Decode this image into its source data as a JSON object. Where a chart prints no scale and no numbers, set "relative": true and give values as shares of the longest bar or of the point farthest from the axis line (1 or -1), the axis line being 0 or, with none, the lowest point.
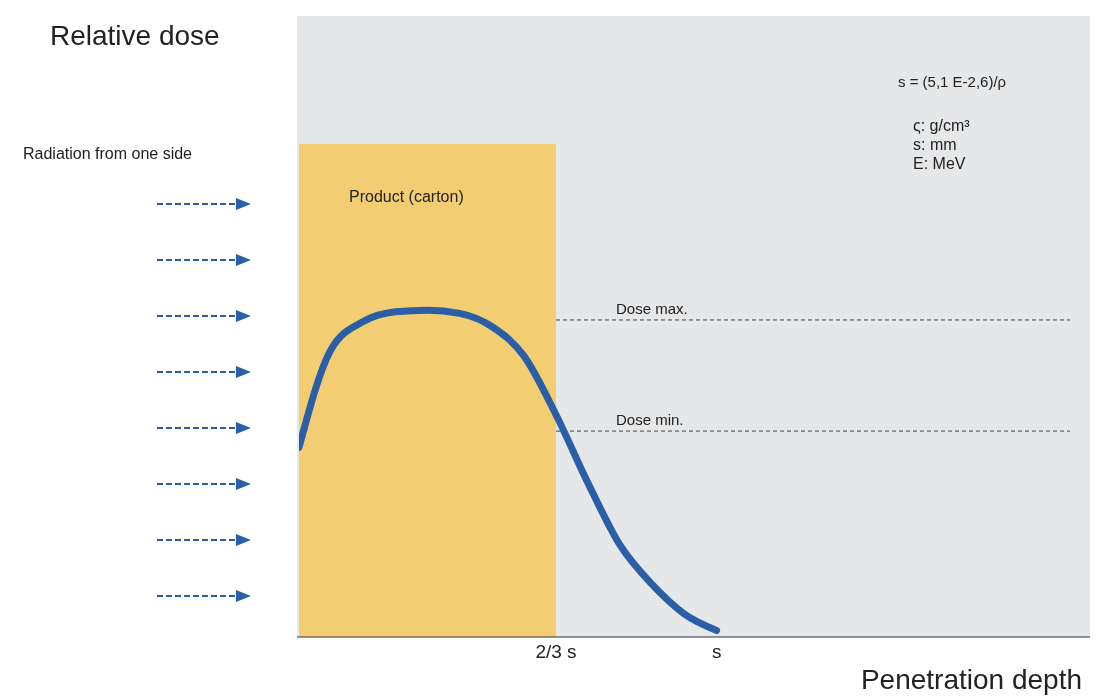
{
  "chart_data": {
    "type": "line",
    "relative": true,
    "xlabel": "Penetration depth",
    "categories": [
      null,
      null,
      null,
      null,
      null,
      null,
      null,
      null,
      "2/3 s",
      null,
      null,
      null,
      null,
      "s",
      null,
      null,
      null,
      null,
      null,
      null,
      null,
      null,
      null,
      null,
      null
    ],
    "series": [
      {
        "color": "#2a5fa8",
        "values": [
          0.58,
          0.88,
          0.965,
          0.995,
          1.0,
          0.99,
          0.95,
          0.86,
          0.68,
          0.47,
          0.28,
          0.16,
          0.07,
          0.02,
          null,
          null,
          null,
          null,
          null,
          null,
          null,
          null,
          null,
          null,
          null
        ]
      }
    ],
    "tick_labels": "x",
    "marker": "none",
    "line_style": "solid",
    "ref_lines": [
      {
        "axis": "y",
        "value": 0.97,
        "label": "Dose max.",
        "color": "#444444",
        "line_style": "dashed"
      },
      {
        "axis": "y",
        "value": 0.63,
        "label": "Dose min.",
        "color": "#444444",
        "line_style": "dashed"
      }
    ],
    "annotations": [
      "Relative dose",
      "Product (carton)",
      "Radiation from one side",
      "s = (5,1 E-2,6)/ρ",
      "ς: g/cm³",
      "s: mm",
      "E: MeV"
    ]
  }
}
